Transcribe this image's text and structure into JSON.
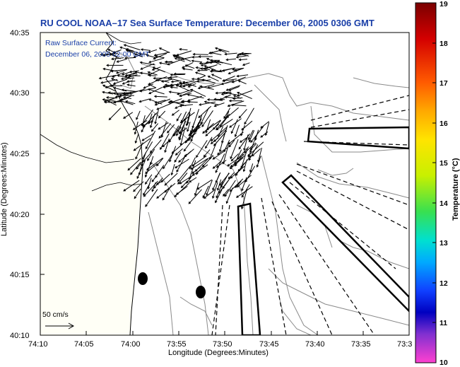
{
  "title": "RU COOL  NOAA–17  Sea Surface Temperature:  December 06, 2005 0306 GMT",
  "subtitle_line1": "Raw Surface Current:",
  "subtitle_line2": "December 06, 2005 02:00 GMT",
  "x_axis": {
    "label": "Longitude (Degrees:Minutes)",
    "ticks": [
      "74:10",
      "74:05",
      "74:00",
      "73:55",
      "73:50",
      "73:45",
      "73:40",
      "73:35",
      "73:3"
    ]
  },
  "y_axis": {
    "label": "Latitude (Degrees:Minutes)",
    "ticks": [
      "40:35",
      "40:30",
      "40:25",
      "40:20",
      "40:15",
      "40:10"
    ]
  },
  "colorbar": {
    "label": "Temperature (°C)",
    "ticks": [
      "19",
      "18",
      "17",
      "16",
      "15",
      "14",
      "13",
      "12",
      "11",
      "10"
    ]
  },
  "scale_label": "50 cm/s",
  "colors": {
    "title": "#1a3fa8",
    "land": "#fffff5",
    "water": "#ffffff"
  }
}
